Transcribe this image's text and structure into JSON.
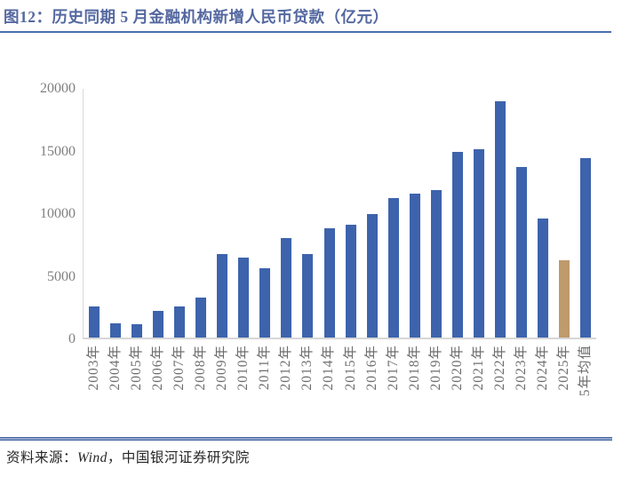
{
  "title": "图12：历史同期 5 月金融机构新增人民币贷款（亿元）",
  "source": {
    "prefix": "资料来源：",
    "wind": "Wind",
    "suffix": "，中国银河证券研究院"
  },
  "chart_data": {
    "type": "bar",
    "title": "历史同期5月金融机构新增人民币贷款（亿元）",
    "xlabel": "",
    "ylabel": "",
    "categories": [
      "2003年",
      "2004年",
      "2005年",
      "2006年",
      "2007年",
      "2008年",
      "2009年",
      "2010年",
      "2011年",
      "2012年",
      "2013年",
      "2014年",
      "2015年",
      "2016年",
      "2017年",
      "2018年",
      "2019年",
      "2020年",
      "2021年",
      "2022年",
      "2023年",
      "2024年",
      "2025年",
      "5年均值"
    ],
    "values": [
      2500,
      1150,
      1050,
      2100,
      2450,
      3200,
      6645,
      6394,
      5516,
      7932,
      6674,
      8708,
      9008,
      9855,
      11100,
      11500,
      11800,
      14800,
      15000,
      18900,
      13600,
      9500,
      6200,
      14360
    ],
    "ylim": [
      0,
      20000
    ],
    "yticks": [
      0,
      5000,
      10000,
      15000,
      20000
    ],
    "grid": false,
    "legend": false,
    "bar_color": "#3D63AC",
    "highlight_color": "#BE9A6C",
    "highlight_index": 22,
    "highlight_category": "2025年"
  }
}
